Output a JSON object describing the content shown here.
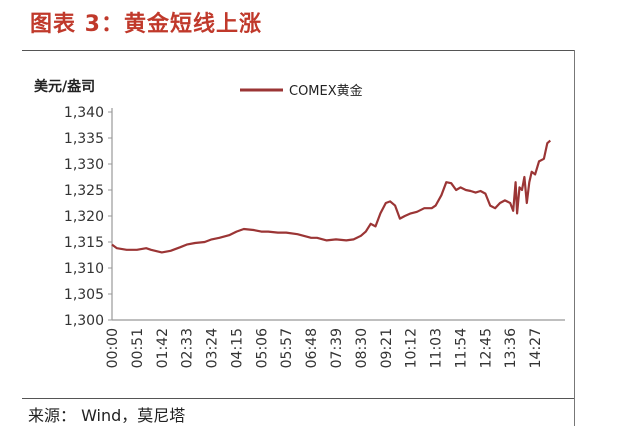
{
  "figure_title": "图表 3：黄金短线上涨",
  "source_note": "来源： Wind，莫尼塔",
  "colors": {
    "title": "#c0392b",
    "series": "#9b3535",
    "axis": "#999999"
  },
  "chart_data": {
    "type": "line",
    "title": "",
    "ylabel": "美元/盎司",
    "xlabel": "",
    "ylim": [
      1300,
      1340
    ],
    "y_ticks": [
      "1,300",
      "1,305",
      "1,310",
      "1,315",
      "1,320",
      "1,325",
      "1,330",
      "1,335",
      "1,340"
    ],
    "x_ticks": [
      "00:00",
      "00:51",
      "01:42",
      "02:33",
      "03:24",
      "04:15",
      "05:06",
      "05:57",
      "06:48",
      "07:39",
      "08:30",
      "09:21",
      "10:12",
      "11:03",
      "11:54",
      "12:45",
      "13:36",
      "14:27"
    ],
    "legend_position": "top-center",
    "grid": false,
    "series": [
      {
        "name": "COMEX黄金",
        "x": [
          "00:00",
          "00:10",
          "00:30",
          "00:51",
          "01:10",
          "01:20",
          "01:42",
          "02:00",
          "02:20",
          "02:33",
          "02:50",
          "03:10",
          "03:24",
          "03:40",
          "04:00",
          "04:15",
          "04:30",
          "04:50",
          "05:06",
          "05:20",
          "05:40",
          "05:57",
          "06:20",
          "06:48",
          "07:00",
          "07:20",
          "07:39",
          "08:00",
          "08:15",
          "08:30",
          "08:40",
          "08:50",
          "09:00",
          "09:10",
          "09:21",
          "09:30",
          "09:40",
          "09:50",
          "10:00",
          "10:12",
          "10:25",
          "10:40",
          "10:55",
          "11:03",
          "11:15",
          "11:25",
          "11:35",
          "11:45",
          "11:54",
          "12:05",
          "12:15",
          "12:25",
          "12:35",
          "12:45",
          "12:55",
          "13:05",
          "13:15",
          "13:25",
          "13:36",
          "13:42",
          "13:47",
          "13:50",
          "13:55",
          "14:00",
          "14:05",
          "14:10",
          "14:15",
          "14:20",
          "14:27",
          "14:35",
          "14:45",
          "14:52",
          "14:58"
        ],
        "values": [
          1314.5,
          1313.8,
          1313.5,
          1313.5,
          1313.8,
          1313.5,
          1313.0,
          1313.3,
          1314.0,
          1314.5,
          1314.8,
          1315.0,
          1315.5,
          1315.8,
          1316.3,
          1317.0,
          1317.5,
          1317.3,
          1317.0,
          1317.0,
          1316.8,
          1316.8,
          1316.5,
          1315.8,
          1315.8,
          1315.3,
          1315.5,
          1315.3,
          1315.5,
          1316.2,
          1317.0,
          1318.5,
          1318.0,
          1320.5,
          1322.5,
          1322.8,
          1322.0,
          1319.5,
          1320.0,
          1320.5,
          1320.8,
          1321.5,
          1321.5,
          1322.0,
          1324.0,
          1326.5,
          1326.3,
          1325.0,
          1325.5,
          1325.0,
          1324.8,
          1324.5,
          1324.8,
          1324.3,
          1322.0,
          1321.5,
          1322.5,
          1323.0,
          1322.5,
          1321.0,
          1326.5,
          1320.5,
          1325.5,
          1325.0,
          1327.5,
          1322.5,
          1326.5,
          1328.5,
          1328.0,
          1330.5,
          1331.0,
          1334.0,
          1334.5
        ]
      }
    ]
  }
}
